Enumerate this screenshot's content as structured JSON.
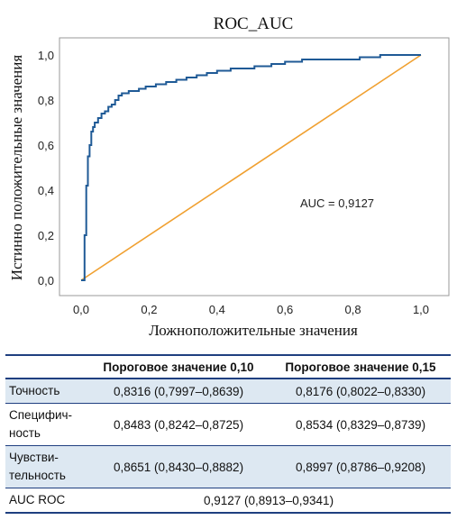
{
  "chart_data": {
    "type": "line",
    "title": "ROC_AUC",
    "xlabel": "Ложноположительные значения",
    "ylabel": "Истинно положительные значения",
    "xlim": [
      0,
      1
    ],
    "ylim": [
      0,
      1
    ],
    "x_ticks": [
      "0,0",
      "0,2",
      "0,4",
      "0,6",
      "0,8",
      "1,0"
    ],
    "y_ticks": [
      "0,0",
      "0,2",
      "0,4",
      "0,6",
      "0,8",
      "1,0"
    ],
    "grid": false,
    "annotation": "AUC = 0,9127",
    "colors": {
      "roc": "#1f5a96",
      "diagonal": "#f0a030"
    },
    "series": [
      {
        "role": "roc",
        "x": [
          0,
          0.01,
          0.01,
          0.015,
          0.015,
          0.02,
          0.02,
          0.025,
          0.025,
          0.03,
          0.03,
          0.035,
          0.035,
          0.04,
          0.04,
          0.05,
          0.05,
          0.06,
          0.06,
          0.07,
          0.07,
          0.08,
          0.08,
          0.09,
          0.09,
          0.1,
          0.1,
          0.11,
          0.11,
          0.12,
          0.12,
          0.14,
          0.14,
          0.17,
          0.17,
          0.19,
          0.19,
          0.22,
          0.22,
          0.25,
          0.25,
          0.28,
          0.28,
          0.31,
          0.31,
          0.34,
          0.34,
          0.37,
          0.37,
          0.4,
          0.4,
          0.44,
          0.44,
          0.47,
          0.47,
          0.51,
          0.51,
          0.56,
          0.56,
          0.6,
          0.6,
          0.65,
          0.65,
          0.71,
          0.71,
          0.82,
          0.82,
          0.88,
          0.88,
          0.93,
          0.93,
          1.0
        ],
        "y": [
          0,
          0,
          0.2,
          0.2,
          0.42,
          0.42,
          0.55,
          0.55,
          0.6,
          0.6,
          0.66,
          0.66,
          0.68,
          0.68,
          0.7,
          0.7,
          0.72,
          0.72,
          0.74,
          0.74,
          0.75,
          0.75,
          0.77,
          0.77,
          0.78,
          0.78,
          0.8,
          0.8,
          0.82,
          0.82,
          0.83,
          0.83,
          0.84,
          0.84,
          0.85,
          0.85,
          0.86,
          0.86,
          0.87,
          0.87,
          0.88,
          0.88,
          0.89,
          0.89,
          0.9,
          0.9,
          0.91,
          0.91,
          0.92,
          0.92,
          0.93,
          0.93,
          0.94,
          0.94,
          0.94,
          0.94,
          0.95,
          0.95,
          0.96,
          0.96,
          0.97,
          0.97,
          0.98,
          0.98,
          0.98,
          0.98,
          0.99,
          0.99,
          1.0,
          1.0,
          1.0,
          1.0
        ]
      },
      {
        "role": "diagonal",
        "x": [
          0,
          1
        ],
        "y": [
          0,
          1
        ]
      }
    ]
  },
  "table": {
    "headers": [
      "",
      "Пороговое значение 0,10",
      "Пороговое значение 0,15"
    ],
    "rows": [
      {
        "label": "Точность",
        "v1": "0,8316 (0,7997–0,8639)",
        "v2": "0,8176 (0,8022–0,8330)"
      },
      {
        "label": "Специфич-\nность",
        "v1": "0,8483 (0,8242–0,8725)",
        "v2": "0,8534 (0,8329–0,8739)"
      },
      {
        "label": "Чувстви-\nтельность",
        "v1": "0,8651 (0,8430–0,8882)",
        "v2": "0,8997 (0,8786–0,9208)"
      },
      {
        "label": "AUC ROC",
        "merged": "0,9127 (0,8913–0,9341)"
      }
    ]
  }
}
